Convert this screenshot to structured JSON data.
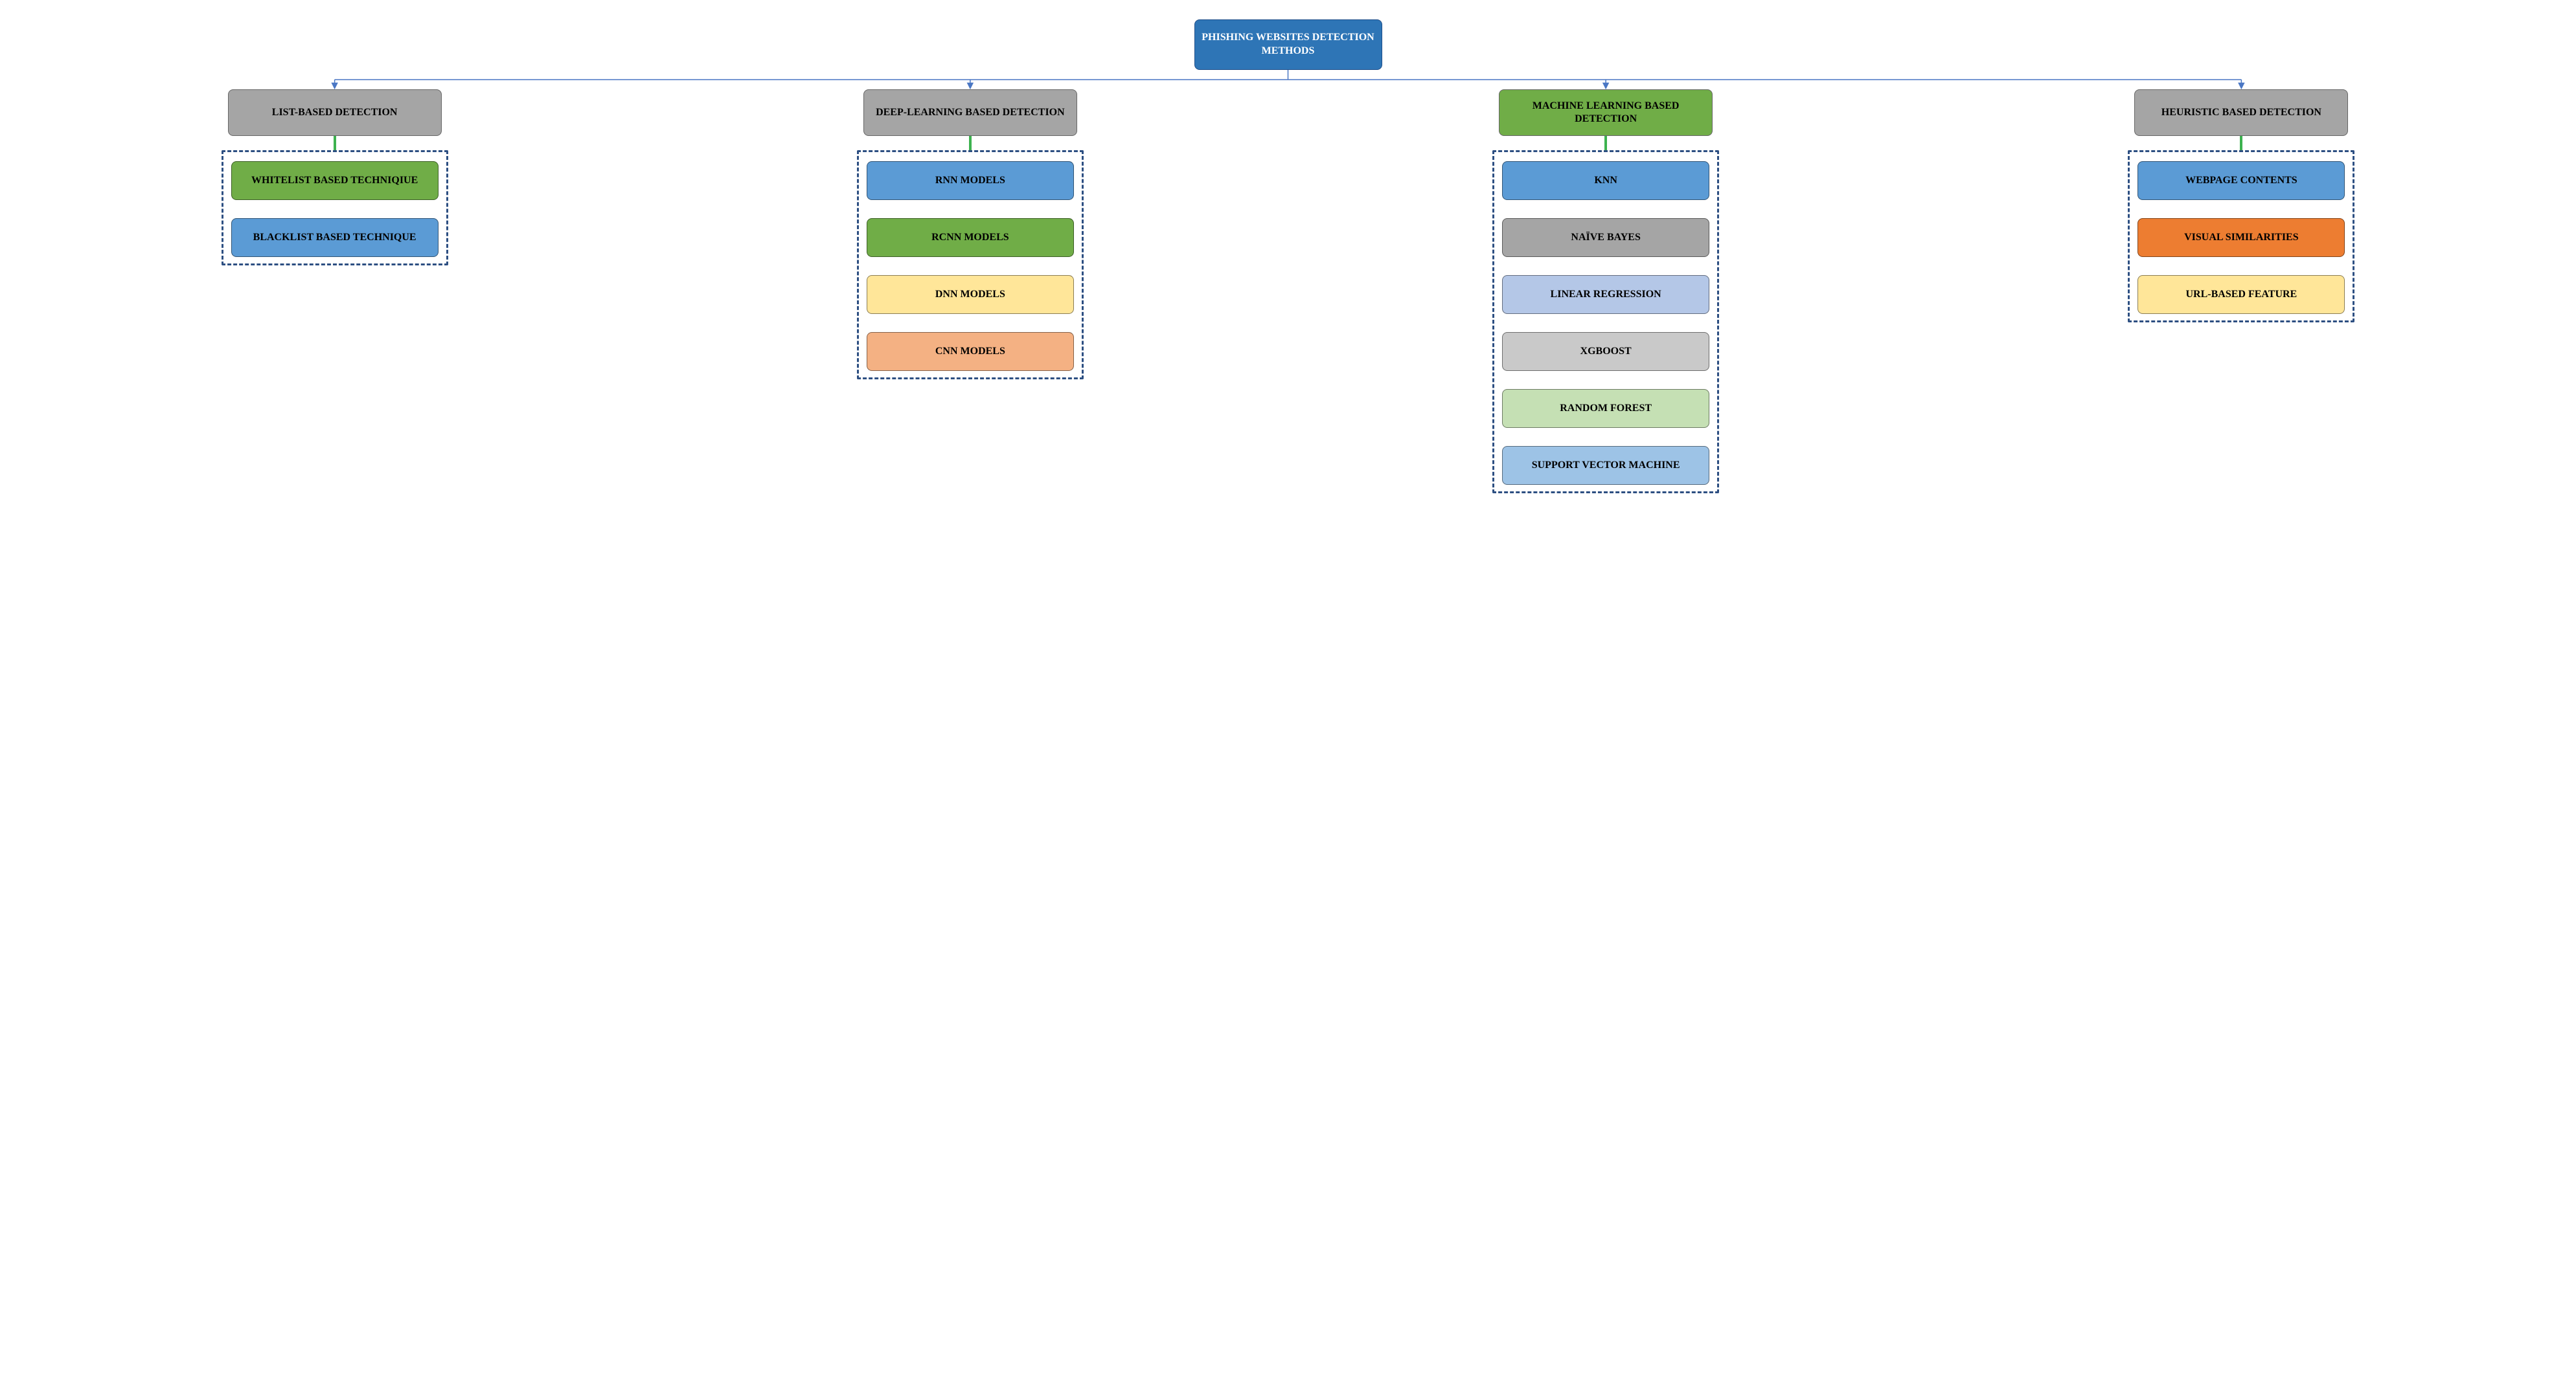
{
  "type": "tree",
  "background_color": "#ffffff",
  "font_family": "Times New Roman",
  "root": {
    "label": "PHISHING WEBSITES DETECTION METHODS",
    "bg_color": "#2e75b6",
    "text_color": "#ffffff",
    "border_color": "#1f4e89",
    "fontsize": 16
  },
  "connectors": {
    "horizontal_line_color": "#4a77c4",
    "arrow_line_color": "#4a77c4",
    "arrowhead_color": "#4a77c4",
    "vertical_stub_color": "#3db24f",
    "vertical_stub_width": 4
  },
  "dashed_box": {
    "border_color": "#2d4f82",
    "border_width": 3,
    "dash_pattern": "dash-dot",
    "padding": 14,
    "item_gap": 28
  },
  "categories": [
    {
      "label": "LIST-BASED DETECTION",
      "bg_color": "#a5a5a5",
      "text_color": "#000000",
      "items": [
        {
          "label": "WHITELIST BASED TECHNIQIUE",
          "bg_color": "#70ad47",
          "text_color": "#000000"
        },
        {
          "label": "BLACKLIST BASED TECHNIQUE",
          "bg_color": "#5b9bd5",
          "text_color": "#000000"
        }
      ]
    },
    {
      "label": "DEEP-LEARNING BASED DETECTION",
      "bg_color": "#a5a5a5",
      "text_color": "#000000",
      "items": [
        {
          "label": "RNN MODELS",
          "bg_color": "#5b9bd5",
          "text_color": "#000000"
        },
        {
          "label": "RCNN MODELS",
          "bg_color": "#70ad47",
          "text_color": "#000000"
        },
        {
          "label": "DNN MODELS",
          "bg_color": "#ffe699",
          "text_color": "#000000"
        },
        {
          "label": "CNN MODELS",
          "bg_color": "#f4b183",
          "text_color": "#000000"
        }
      ]
    },
    {
      "label": "MACHINE LEARNING BASED DETECTION",
      "bg_color": "#70ad47",
      "text_color": "#000000",
      "items": [
        {
          "label": "KNN",
          "bg_color": "#5b9bd5",
          "text_color": "#000000"
        },
        {
          "label": "NAÏVE BAYES",
          "bg_color": "#a5a5a5",
          "text_color": "#000000"
        },
        {
          "label": "LINEAR REGRESSION",
          "bg_color": "#b4c7e7",
          "text_color": "#000000"
        },
        {
          "label": "XGBOOST",
          "bg_color": "#c9c9c9",
          "text_color": "#000000"
        },
        {
          "label": "RANDOM FOREST",
          "bg_color": "#c5e0b4",
          "text_color": "#000000"
        },
        {
          "label": "SUPPORT VECTOR MACHINE",
          "bg_color": "#9dc3e6",
          "text_color": "#000000"
        }
      ]
    },
    {
      "label": "HEURISTIC BASED DETECTION",
      "bg_color": "#a5a5a5",
      "text_color": "#000000",
      "items": [
        {
          "label": "WEBPAGE CONTENTS",
          "bg_color": "#5b9bd5",
          "text_color": "#000000"
        },
        {
          "label": "VISUAL SIMILARITIES",
          "bg_color": "#ed7d31",
          "text_color": "#000000"
        },
        {
          "label": "URL-BASED FEATURE",
          "bg_color": "#ffe699",
          "text_color": "#000000"
        }
      ]
    }
  ]
}
